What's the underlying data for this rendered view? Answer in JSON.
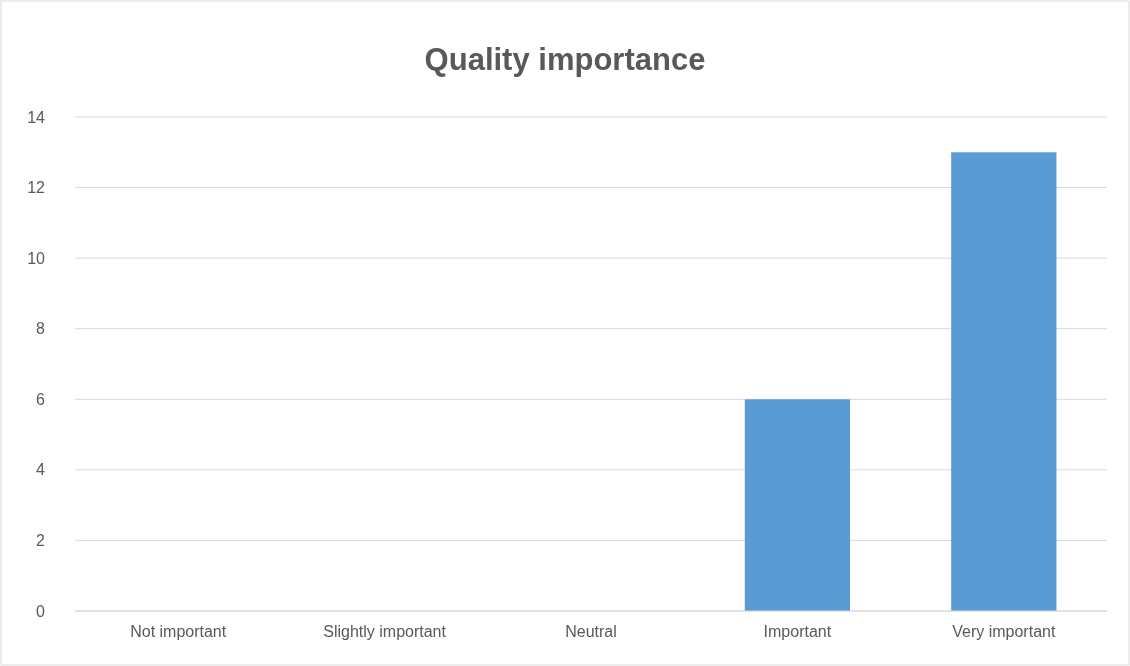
{
  "chart_data": {
    "type": "bar",
    "title": "Quality importance",
    "categories": [
      "Not important",
      "Slightly important",
      "Neutral",
      "Important",
      "Very important"
    ],
    "values": [
      0,
      0,
      0,
      6,
      13
    ],
    "color": "#5b9bd5",
    "ylim": [
      0,
      14
    ],
    "yticks": [
      0,
      2,
      4,
      6,
      8,
      10,
      12,
      14
    ],
    "grid": "y"
  }
}
